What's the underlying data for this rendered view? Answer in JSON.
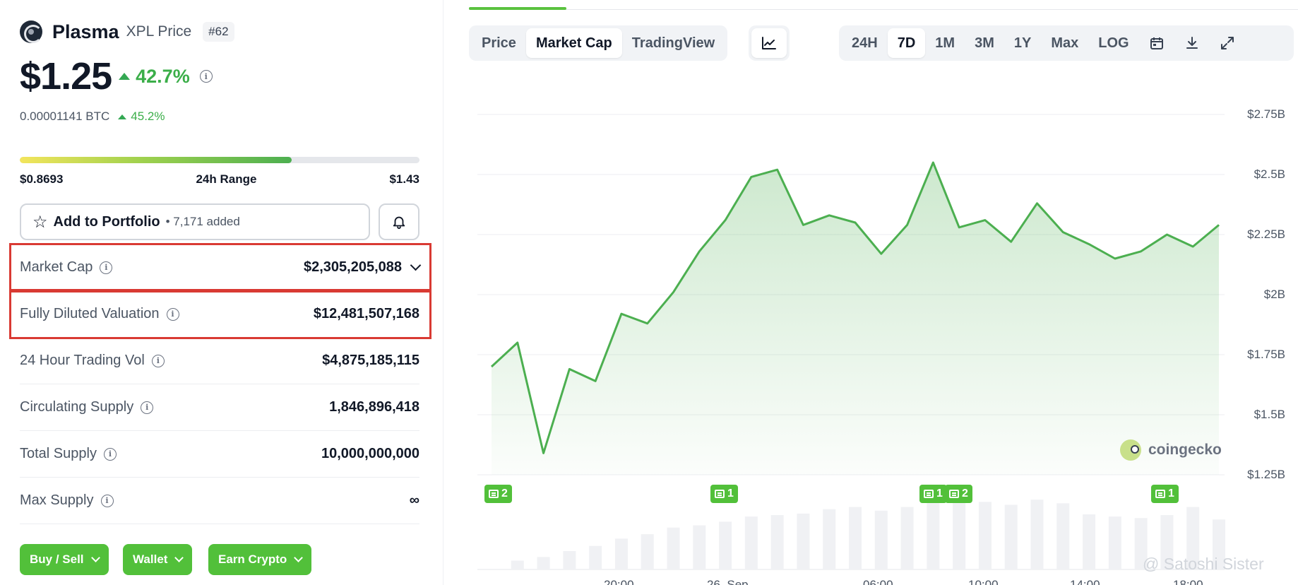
{
  "coin": {
    "name": "Plasma",
    "subtitle": "XPL Price",
    "rank": "#62",
    "price": "$1.25",
    "change_24h": "42.7%",
    "btc_price": "0.00001141 BTC",
    "btc_change": "45.2%"
  },
  "range": {
    "low": "$0.8693",
    "label": "24h Range",
    "high": "$1.43",
    "fill_fraction": 0.68
  },
  "portfolio": {
    "label": "Add to Portfolio",
    "count": "• 7,171 added"
  },
  "stats": [
    {
      "label": "Market Cap",
      "value": "$2,305,205,088"
    },
    {
      "label": "Fully Diluted Valuation",
      "value": "$12,481,507,168"
    },
    {
      "label": "24 Hour Trading Vol",
      "value": "$4,875,185,115"
    },
    {
      "label": "Circulating Supply",
      "value": "1,846,896,418"
    },
    {
      "label": "Total Supply",
      "value": "10,000,000,000"
    },
    {
      "label": "Max Supply",
      "value": "∞"
    }
  ],
  "actions": [
    "Buy / Sell",
    "Wallet",
    "Earn Crypto"
  ],
  "chart_tabs": [
    "Price",
    "Market Cap",
    "TradingView"
  ],
  "chart_tabs_active": "Market Cap",
  "ranges": [
    "24H",
    "7D",
    "1M",
    "3M",
    "1Y",
    "Max",
    "LOG"
  ],
  "ranges_active": "7D",
  "icons": {
    "line_chart": "line-chart-icon",
    "calendar": "calendar-icon",
    "download": "download-icon",
    "expand": "expand-icon"
  },
  "colors": {
    "accent_green": "#52c03a",
    "line_green": "#4caf50",
    "highlight_red": "#d93a33"
  },
  "chart_data": {
    "type": "area",
    "title": "",
    "xlabel": "",
    "ylabel": "",
    "y_tick_labels": [
      "$2.75B",
      "$2.5B",
      "$2.25B",
      "$2B",
      "$1.75B",
      "$1.5B",
      "$1.25B"
    ],
    "y_ticks": [
      2.75,
      2.5,
      2.25,
      2.0,
      1.75,
      1.5,
      1.25
    ],
    "ylim": [
      1.25,
      2.75
    ],
    "x_tick_labels": [
      "20:00",
      "26. Sep",
      "06:00",
      "10:00",
      "14:00",
      "18:00"
    ],
    "series": [
      {
        "values": [
          1.7,
          1.8,
          1.34,
          1.69,
          1.64,
          1.92,
          1.88,
          2.01,
          2.18,
          2.31,
          2.49,
          2.52,
          2.29,
          2.33,
          2.3,
          2.17,
          2.29,
          2.55,
          2.28,
          2.31,
          2.22,
          2.38,
          2.26,
          2.21,
          2.15,
          2.18,
          2.25,
          2.2,
          2.29
        ]
      }
    ],
    "volume": [
      0.05,
      0.12,
      0.17,
      0.25,
      0.32,
      0.42,
      0.48,
      0.57,
      0.6,
      0.65,
      0.72,
      0.74,
      0.76,
      0.82,
      0.85,
      0.8,
      0.85,
      1.0,
      0.95,
      0.92,
      0.88,
      0.95,
      0.9,
      0.75,
      0.72,
      0.7,
      0.74,
      0.85,
      0.68
    ],
    "news_markers": [
      {
        "count": "2"
      },
      {
        "count": "1"
      },
      {
        "count": "1"
      },
      {
        "count": "2"
      },
      {
        "count": "1"
      }
    ],
    "grid": true
  },
  "watermark": "coingecko",
  "credit": "@ Satoshi Sister"
}
